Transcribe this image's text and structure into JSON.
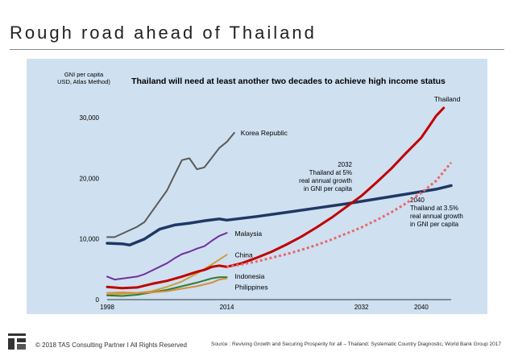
{
  "slide": {
    "title": "Rough road ahead of Thailand",
    "copyright": "© 2018 TAS Consulting Partner  I  All Rights Reserved",
    "source": "Source : Reviving Growth and Securing Prosperity for all – Thailand: Systematic Country Diagnostic, World Bank Group 2017"
  },
  "chart_data": {
    "type": "line",
    "title": "Thailand will need at least another two decades to achieve high income status",
    "ylabel_lines": [
      "GNI per capita",
      "USD, Atlas Method)"
    ],
    "ylim": [
      0,
      32000
    ],
    "yticks": [
      {
        "value": 0,
        "label": "0"
      },
      {
        "value": 10000,
        "label": "10,000"
      },
      {
        "value": 20000,
        "label": "20,000"
      },
      {
        "value": 30000,
        "label": "30,000"
      }
    ],
    "xlim": [
      1998,
      2044
    ],
    "xticks": [
      {
        "value": 1998,
        "label": "1998"
      },
      {
        "value": 2014,
        "label": "2014"
      },
      {
        "value": 2032,
        "label": "2032"
      },
      {
        "value": 2040,
        "label": "2040"
      }
    ],
    "grid": false,
    "series": [
      {
        "name": "Korea Republic",
        "color": "#5a5a5a",
        "dashed": false,
        "width": 2,
        "points": [
          [
            1998,
            10300
          ],
          [
            1999,
            10300
          ],
          [
            2002,
            12000
          ],
          [
            2003,
            12800
          ],
          [
            2006,
            18000
          ],
          [
            2007,
            20500
          ],
          [
            2008,
            23000
          ],
          [
            2009,
            23300
          ],
          [
            2010,
            21500
          ],
          [
            2011,
            21800
          ],
          [
            2012,
            23400
          ],
          [
            2013,
            25000
          ],
          [
            2014,
            26000
          ],
          [
            2015,
            27500
          ]
        ]
      },
      {
        "name": "Malaysia",
        "color": "#7030a0",
        "dashed": false,
        "width": 2,
        "points": [
          [
            1998,
            3800
          ],
          [
            1999,
            3300
          ],
          [
            2002,
            3800
          ],
          [
            2003,
            4200
          ],
          [
            2006,
            6000
          ],
          [
            2007,
            6800
          ],
          [
            2008,
            7500
          ],
          [
            2009,
            7900
          ],
          [
            2010,
            8400
          ],
          [
            2011,
            8800
          ],
          [
            2012,
            9700
          ],
          [
            2013,
            10500
          ],
          [
            2014,
            11000
          ]
        ]
      },
      {
        "name": "China",
        "color": "#c7a13b",
        "dashed": false,
        "width": 2,
        "points": [
          [
            1998,
            800
          ],
          [
            2002,
            1100
          ],
          [
            2004,
            1400
          ],
          [
            2006,
            2100
          ],
          [
            2008,
            3000
          ],
          [
            2010,
            4300
          ],
          [
            2012,
            5800
          ],
          [
            2013,
            6600
          ],
          [
            2014,
            7400
          ]
        ]
      },
      {
        "name": "Indonesia",
        "color": "#2e7d32",
        "dashed": false,
        "width": 2,
        "points": [
          [
            1998,
            700
          ],
          [
            2000,
            600
          ],
          [
            2002,
            800
          ],
          [
            2004,
            1200
          ],
          [
            2006,
            1600
          ],
          [
            2008,
            2200
          ],
          [
            2010,
            2800
          ],
          [
            2012,
            3500
          ],
          [
            2013,
            3700
          ],
          [
            2014,
            3700
          ]
        ]
      },
      {
        "name": "Philippines",
        "color": "#d98c3f",
        "dashed": false,
        "width": 2,
        "points": [
          [
            1998,
            1100
          ],
          [
            2000,
            1200
          ],
          [
            2002,
            1100
          ],
          [
            2004,
            1200
          ],
          [
            2006,
            1400
          ],
          [
            2008,
            1800
          ],
          [
            2010,
            2200
          ],
          [
            2012,
            2800
          ],
          [
            2013,
            3300
          ],
          [
            2014,
            3500
          ]
        ]
      },
      {
        "name": "",
        "color": "#1f3864",
        "dashed": false,
        "width": 3.5,
        "points": [
          [
            1998,
            9300
          ],
          [
            2000,
            9200
          ],
          [
            2001,
            9000
          ],
          [
            2003,
            10000
          ],
          [
            2005,
            11600
          ],
          [
            2007,
            12300
          ],
          [
            2009,
            12600
          ],
          [
            2011,
            13000
          ],
          [
            2013,
            13300
          ],
          [
            2014,
            13100
          ],
          [
            2018,
            13700
          ],
          [
            2022,
            14400
          ],
          [
            2026,
            15100
          ],
          [
            2030,
            15800
          ],
          [
            2034,
            16600
          ],
          [
            2038,
            17400
          ],
          [
            2042,
            18200
          ],
          [
            2044,
            18800
          ]
        ]
      },
      {
        "name": "Thailand",
        "color": "#c00000",
        "dashed": false,
        "width": 3,
        "points": [
          [
            1998,
            2100
          ],
          [
            2000,
            1900
          ],
          [
            2002,
            2000
          ],
          [
            2004,
            2600
          ],
          [
            2006,
            3100
          ],
          [
            2008,
            3800
          ],
          [
            2009,
            4200
          ],
          [
            2010,
            4600
          ],
          [
            2011,
            4900
          ],
          [
            2012,
            5400
          ],
          [
            2013,
            5600
          ],
          [
            2014,
            5400
          ],
          [
            2016,
            6000
          ],
          [
            2018,
            6900
          ],
          [
            2020,
            7900
          ],
          [
            2022,
            9100
          ],
          [
            2024,
            10400
          ],
          [
            2026,
            11900
          ],
          [
            2028,
            13500
          ],
          [
            2030,
            15300
          ],
          [
            2032,
            17100
          ],
          [
            2034,
            19300
          ],
          [
            2036,
            21600
          ],
          [
            2038,
            24200
          ],
          [
            2040,
            26700
          ],
          [
            2041,
            28500
          ],
          [
            2042,
            30300
          ],
          [
            2043,
            31600
          ]
        ]
      },
      {
        "name": "",
        "color": "#e8686a",
        "dashed": true,
        "width": 3,
        "points": [
          [
            2014,
            5400
          ],
          [
            2016,
            5800
          ],
          [
            2018,
            6300
          ],
          [
            2020,
            6900
          ],
          [
            2022,
            7500
          ],
          [
            2024,
            8200
          ],
          [
            2026,
            9000
          ],
          [
            2028,
            9900
          ],
          [
            2030,
            10900
          ],
          [
            2032,
            11900
          ],
          [
            2034,
            13100
          ],
          [
            2036,
            14400
          ],
          [
            2038,
            15900
          ],
          [
            2040,
            17600
          ],
          [
            2042,
            19600
          ],
          [
            2044,
            22600
          ]
        ]
      }
    ],
    "annotations": [
      {
        "lines": [
          "2032",
          "Thailand at 5%",
          "real annual growth",
          "in GNI per capita"
        ]
      },
      {
        "lines": [
          "2040",
          "Thailand at 3.5%",
          "real annual growth",
          "in GNI per capita"
        ]
      }
    ]
  }
}
